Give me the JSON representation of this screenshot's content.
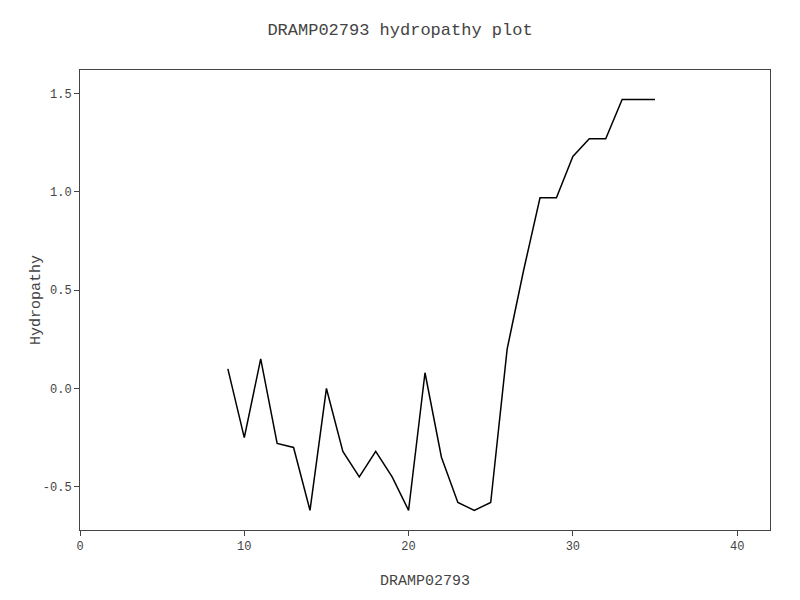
{
  "chart_data": {
    "type": "line",
    "title": "DRAMP02793 hydropathy plot",
    "xlabel": "DRAMP02793",
    "ylabel": "Hydropathy",
    "x": [
      9,
      10,
      11,
      12,
      13,
      14,
      15,
      16,
      17,
      18,
      19,
      20,
      21,
      22,
      23,
      24,
      25,
      26,
      27,
      28,
      29,
      30,
      31,
      32,
      33,
      34,
      35
    ],
    "values": [
      0.1,
      -0.25,
      0.15,
      -0.28,
      -0.3,
      -0.62,
      0.0,
      -0.32,
      -0.45,
      -0.32,
      -0.45,
      -0.62,
      0.08,
      -0.35,
      -0.58,
      -0.62,
      -0.58,
      0.2,
      0.6,
      0.97,
      0.97,
      1.18,
      1.27,
      1.27,
      1.47,
      1.47,
      1.47
    ],
    "color": "black",
    "xlim": [
      0,
      42
    ],
    "ylim": [
      -0.72,
      1.62
    ],
    "xticks": [
      0,
      10,
      20,
      30,
      40
    ],
    "yticks": [
      -0.5,
      {
        "value": 0,
        "label": "0.0"
      },
      0.5,
      {
        "value": 1,
        "label": "1.0"
      },
      1.5
    ],
    "grid": false
  }
}
